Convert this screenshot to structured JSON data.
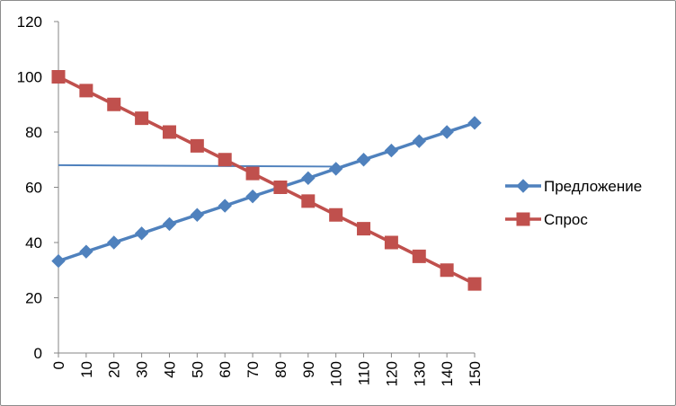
{
  "chart_data": {
    "type": "line",
    "title": "",
    "xlabel": "",
    "ylabel": "",
    "x": [
      0,
      10,
      20,
      30,
      40,
      50,
      60,
      70,
      80,
      90,
      100,
      110,
      120,
      130,
      140,
      150
    ],
    "ylim": [
      0,
      120
    ],
    "yticks": [
      0,
      20,
      40,
      60,
      80,
      100,
      120
    ],
    "grid": false,
    "legend_position": "right",
    "series": [
      {
        "name": "Предложение",
        "color": "#4f81bd",
        "marker": "diamond",
        "values": [
          33.3,
          36.7,
          40,
          43.3,
          46.7,
          50,
          53.3,
          56.7,
          60,
          63.3,
          66.7,
          70,
          73.3,
          76.7,
          80,
          83.3
        ]
      },
      {
        "name": "Спрос",
        "color": "#c0504d",
        "marker": "square",
        "values": [
          100,
          95,
          90,
          85,
          80,
          75,
          70,
          65,
          60,
          55,
          50,
          45,
          40,
          35,
          30,
          25
        ]
      }
    ],
    "annotations": [
      {
        "type": "line",
        "color": "#4f81bd",
        "x_start": 0,
        "x_end": 100,
        "y_start": 68,
        "y_end": 67.5
      }
    ]
  }
}
